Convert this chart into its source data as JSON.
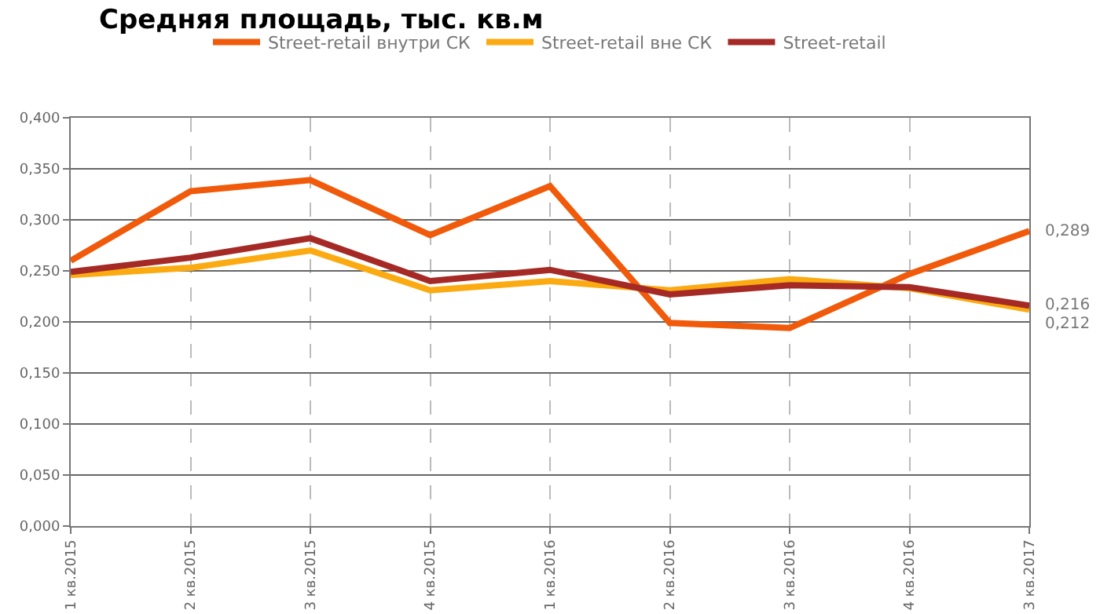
{
  "chart_data": {
    "type": "line",
    "title": "Средняя площадь, тыс. кв.м",
    "categories": [
      "1 кв.2015",
      "2 кв.2015",
      "3 кв.2015",
      "4 кв.2015",
      "1 кв.2016",
      "2 кв.2016",
      "3 кв.2016",
      "4 кв.2016",
      "3 кв.2017"
    ],
    "series": [
      {
        "name": "Street-retail внутри СК",
        "color": "#f05a0a",
        "values": [
          0.26,
          0.328,
          0.339,
          0.285,
          0.333,
          0.199,
          0.194,
          0.247,
          0.289
        ],
        "value_labels": [
          null,
          null,
          null,
          null,
          null,
          null,
          null,
          null,
          "0,289"
        ]
      },
      {
        "name": "Street-retail вне СК",
        "color": "#fbab11",
        "values": [
          0.246,
          0.253,
          0.27,
          0.231,
          0.24,
          0.231,
          0.242,
          0.233,
          0.212
        ],
        "value_labels": [
          null,
          null,
          null,
          null,
          null,
          null,
          null,
          null,
          "0,212"
        ]
      },
      {
        "name": "Street-retail",
        "color": "#a52a25",
        "values": [
          0.249,
          0.263,
          0.282,
          0.24,
          0.251,
          0.227,
          0.236,
          0.234,
          0.216
        ],
        "value_labels": [
          null,
          null,
          null,
          null,
          null,
          null,
          null,
          null,
          "0,216"
        ]
      }
    ],
    "ylim": [
      0,
      0.4
    ],
    "yticks": [
      {
        "value": 0,
        "label": "0,000"
      },
      {
        "value": 0.05,
        "label": "0,050"
      },
      {
        "value": 0.1,
        "label": "0,100"
      },
      {
        "value": 0.15,
        "label": "0,150"
      },
      {
        "value": 0.2,
        "label": "0,200"
      },
      {
        "value": 0.25,
        "label": "0,250"
      },
      {
        "value": 0.3,
        "label": "0,300"
      },
      {
        "value": 0.35,
        "label": "0,350"
      },
      {
        "value": 0.4,
        "label": "0,400"
      }
    ],
    "grid": true,
    "legend": "top",
    "marker": "none",
    "line_style": "solid"
  }
}
